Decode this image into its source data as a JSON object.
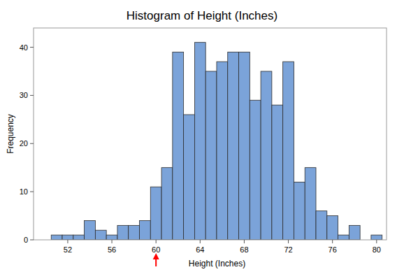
{
  "chart_data": {
    "type": "histogram",
    "title": "Histogram of Height (Inches)",
    "x_label": "Height (Inches)",
    "y_label": "Frequency",
    "bins": [
      50.5,
      51.5,
      52.5,
      53.5,
      54.5,
      55.5,
      56.5,
      57.5,
      58.5,
      59.5,
      60.5,
      61.5,
      62.5,
      63.5,
      64.5,
      65.5,
      66.5,
      67.5,
      68.5,
      69.5,
      70.5,
      71.5,
      72.5,
      73.5,
      74.5,
      75.5,
      76.5,
      77.5,
      78.5,
      79.5,
      80.5
    ],
    "values": [
      1,
      1,
      1,
      4,
      2,
      1,
      3,
      3,
      4,
      11,
      15,
      39,
      26,
      41,
      35,
      37,
      39,
      39,
      29,
      35,
      28,
      37,
      12,
      15,
      6,
      5,
      1,
      3,
      0,
      1
    ],
    "color": "#7ba3d9",
    "xlim": [
      48.9,
      80.9
    ],
    "xticks": [
      52,
      56,
      60,
      64,
      68,
      72,
      76,
      80
    ],
    "ylim": [
      0,
      44
    ],
    "yticks": [
      0,
      10,
      20,
      30,
      40
    ],
    "grid": false,
    "arrow_at": 60,
    "arrow_color": "#ff0000"
  }
}
